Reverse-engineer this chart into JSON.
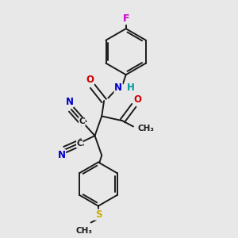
{
  "bg_color": "#e8e8e8",
  "bond_color": "#1a1a1a",
  "bond_width": 1.4,
  "atom_colors": {
    "N": "#0000cc",
    "O": "#cc0000",
    "F": "#cc00cc",
    "S": "#ccaa00",
    "C": "#1a1a1a",
    "H": "#009999"
  },
  "font_size": 8.5
}
